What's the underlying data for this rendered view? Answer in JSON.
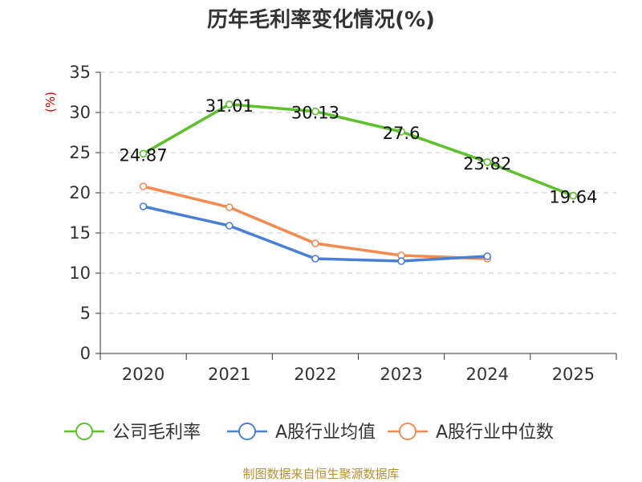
{
  "chart_data": {
    "type": "line",
    "title": "历年毛利率变化情况(%)",
    "ylabel": "(%)",
    "xlabel": "",
    "ylim": [
      0,
      35
    ],
    "yticks": [
      0,
      5,
      10,
      15,
      20,
      25,
      30,
      35
    ],
    "categories": [
      "2020",
      "2021",
      "2022",
      "2023",
      "2024",
      "2025"
    ],
    "series": [
      {
        "name": "公司毛利率",
        "color": "#5cc12a",
        "values": [
          24.87,
          31.01,
          30.13,
          27.6,
          23.82,
          19.64
        ],
        "labels": [
          "24.87",
          "31.01",
          "30.13",
          "27.6",
          "23.82",
          "19.64"
        ]
      },
      {
        "name": "A股行业均值",
        "color": "#4a7fd6",
        "values": [
          18.3,
          15.9,
          11.8,
          11.5,
          12.1,
          null
        ]
      },
      {
        "name": "A股行业中位数",
        "color": "#f38a50",
        "values": [
          20.8,
          18.2,
          13.7,
          12.2,
          11.8,
          null
        ]
      }
    ],
    "grid": true,
    "legend": "bottom"
  },
  "source": "制图数据来自恒生聚源数据库"
}
